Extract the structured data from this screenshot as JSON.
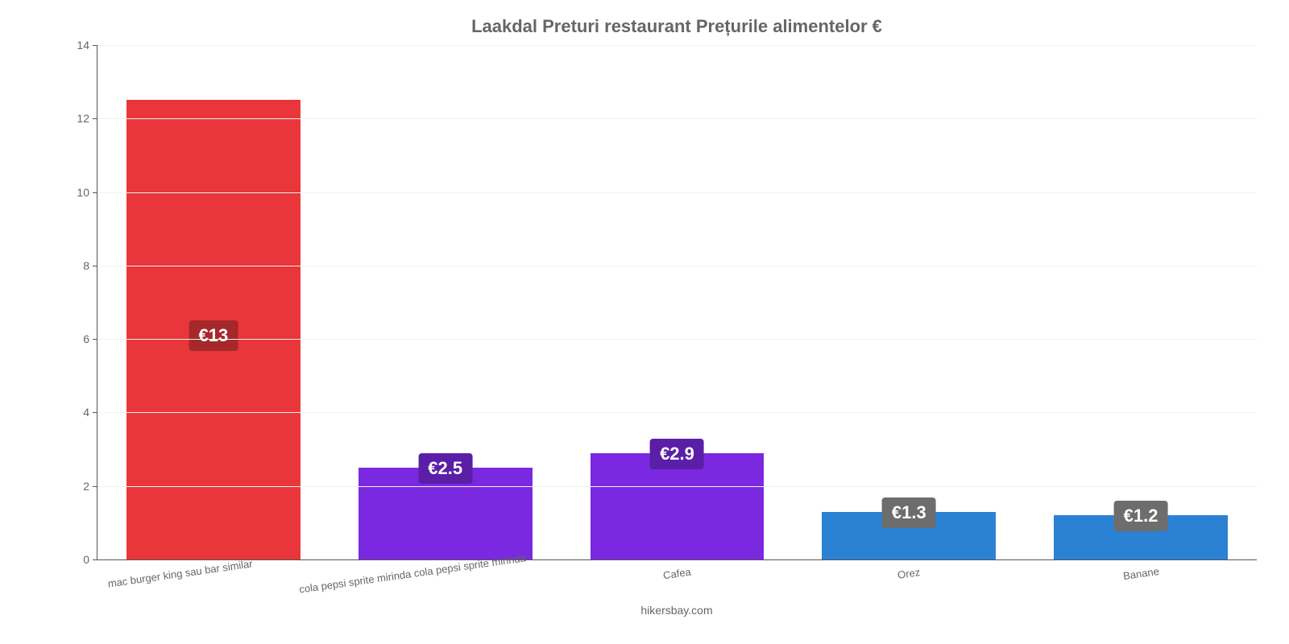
{
  "chart": {
    "type": "bar",
    "title": "Laakdal Preturi restaurant Prețurile alimentelor €",
    "title_fontsize": 22,
    "title_color": "#666666",
    "background_color": "#ffffff",
    "grid_color": "#f1f1f1",
    "axis_color": "#555555",
    "tick_color": "#666666",
    "tick_fontsize": 14,
    "x_label_fontsize": 13,
    "x_label_rotate_deg": -8,
    "bar_width_pct": 75,
    "ylim": [
      0,
      14
    ],
    "yticks": [
      0,
      2,
      4,
      6,
      8,
      10,
      12,
      14
    ],
    "categories": [
      "mac burger king sau bar similar",
      "cola pepsi sprite mirinda cola pepsi sprite mirinda",
      "Cafea",
      "Orez",
      "Banane"
    ],
    "values": [
      12.5,
      2.5,
      2.9,
      1.3,
      1.2
    ],
    "value_labels": [
      "€13",
      "€2.5",
      "€2.9",
      "€1.3",
      "€1.2"
    ],
    "bar_colors": [
      "#e8363a",
      "#7a29e0",
      "#7a29e0",
      "#2b82d4",
      "#2b82d4"
    ],
    "badge_colors": [
      "#a5282b",
      "#5a1ea7",
      "#5a1ea7",
      "#6d6d6d",
      "#6d6d6d"
    ],
    "badge_fontsize": 22,
    "badge_padding": "6px 12px",
    "source_text": "hikersbay.com",
    "source_fontsize": 14,
    "source_color": "#666666"
  }
}
